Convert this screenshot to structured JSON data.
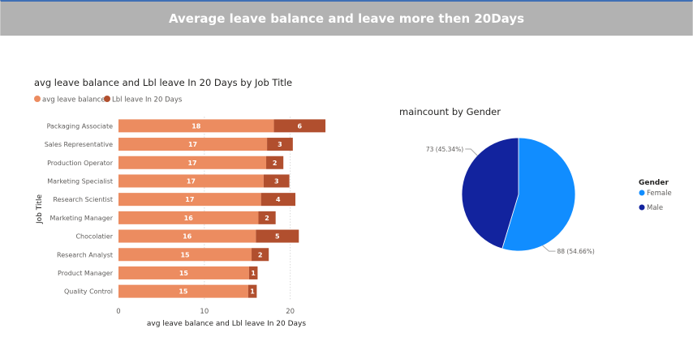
{
  "page": {
    "title": "Average leave balance and leave more then 20Days"
  },
  "chart_data": [
    {
      "type": "bar",
      "orientation": "horizontal",
      "stacked": true,
      "title": "avg leave balance and Lbl leave In 20 Days by Job Title",
      "xlabel": "avg leave balance and Lbl leave In 20 Days",
      "ylabel": "Job Title",
      "xlim": [
        0,
        24
      ],
      "xticks": [
        "0",
        "10",
        "20"
      ],
      "grid": true,
      "legend": "top-left",
      "categories": [
        "Packaging Associate",
        "Sales Representative",
        "Production Operator",
        "Marketing Specialist",
        "Research Scientist",
        "Marketing Manager",
        "Chocolatier",
        "Research Analyst",
        "Product Manager",
        "Quality Control"
      ],
      "series": [
        {
          "name": "avg leave balance",
          "color": "#ec8c60",
          "values": [
            18,
            17,
            17,
            17,
            17,
            16,
            16,
            15,
            15,
            15
          ],
          "exact": [
            18.1,
            17.3,
            17.2,
            16.9,
            16.6,
            16.3,
            16.0,
            15.5,
            15.2,
            15.1
          ]
        },
        {
          "name": "Lbl leave In 20 Days",
          "color": "#b14f2e",
          "values": [
            6,
            3,
            2,
            3,
            4,
            2,
            5,
            2,
            1,
            1
          ],
          "exact": [
            6.0,
            3.0,
            2.0,
            3.0,
            4.0,
            2.0,
            5.0,
            2.0,
            1.0,
            1.0
          ]
        }
      ]
    },
    {
      "type": "pie",
      "title": "maincount by Gender",
      "legend_title": "Gender",
      "legend": "right",
      "slices": [
        {
          "label": "Female",
          "value": 88,
          "percent": "54.66%",
          "color": "#118dff",
          "display": "88 (54.66%)"
        },
        {
          "label": "Male",
          "value": 73,
          "percent": "45.34%",
          "color": "#12239e",
          "display": "73 (45.34%)"
        }
      ]
    }
  ]
}
